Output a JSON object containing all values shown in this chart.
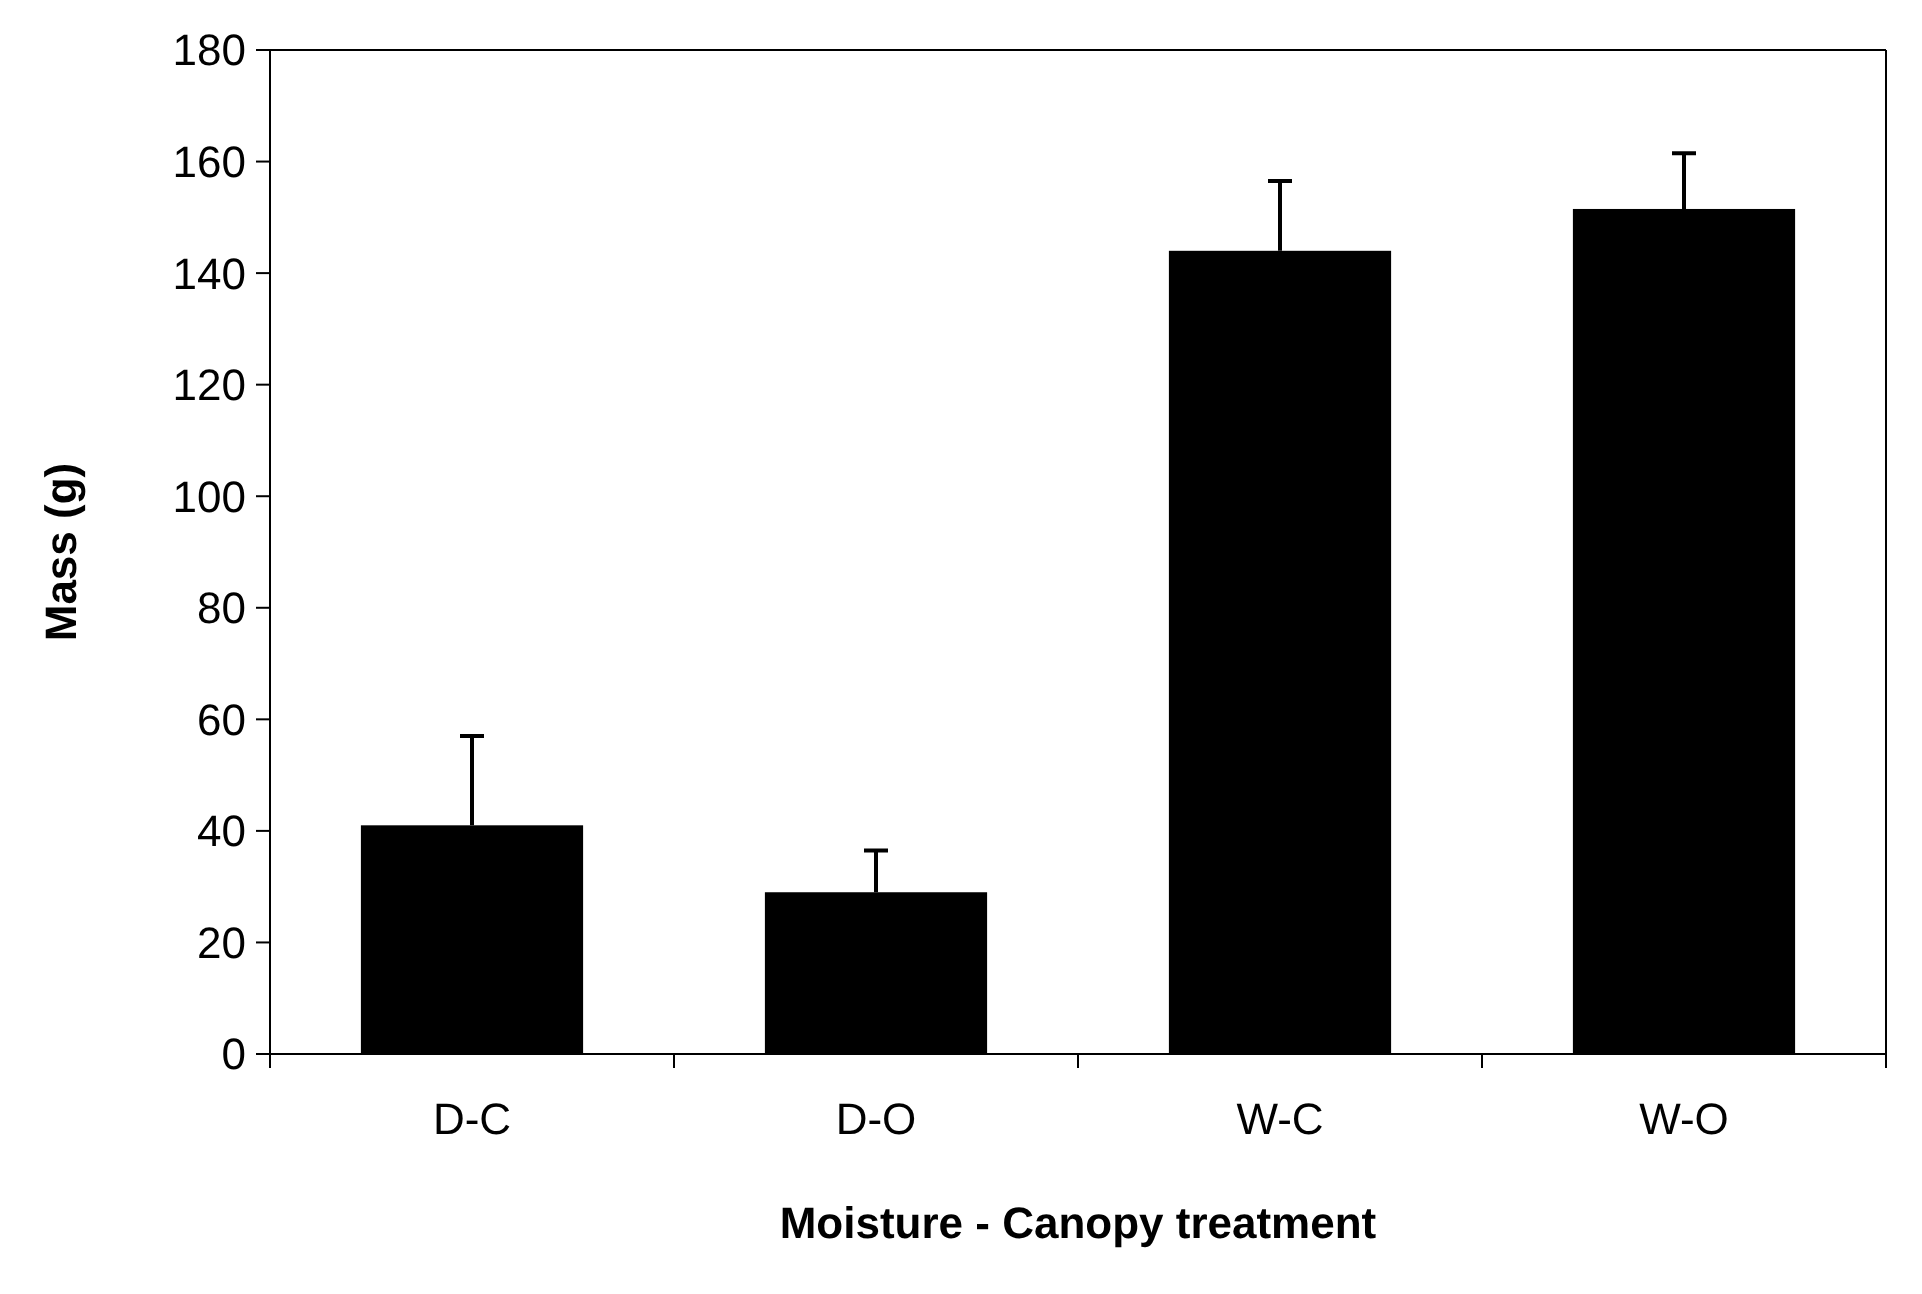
{
  "chart_data": {
    "type": "bar",
    "xlabel": "Moisture - Canopy treatment",
    "ylabel": "Mass (g)",
    "categories": [
      "D-C",
      "D-O",
      "W-C",
      "W-O"
    ],
    "values": [
      41,
      29,
      144,
      151.5
    ],
    "errors": [
      [
        41,
        57
      ],
      [
        29,
        36.5
      ],
      [
        144,
        156.5
      ],
      [
        151.5,
        161.5
      ]
    ],
    "color": "#000000",
    "ylim": [
      0,
      180
    ],
    "yticks": [
      0,
      20,
      40,
      60,
      80,
      100,
      120,
      140,
      160,
      180
    ],
    "grid": false
  }
}
